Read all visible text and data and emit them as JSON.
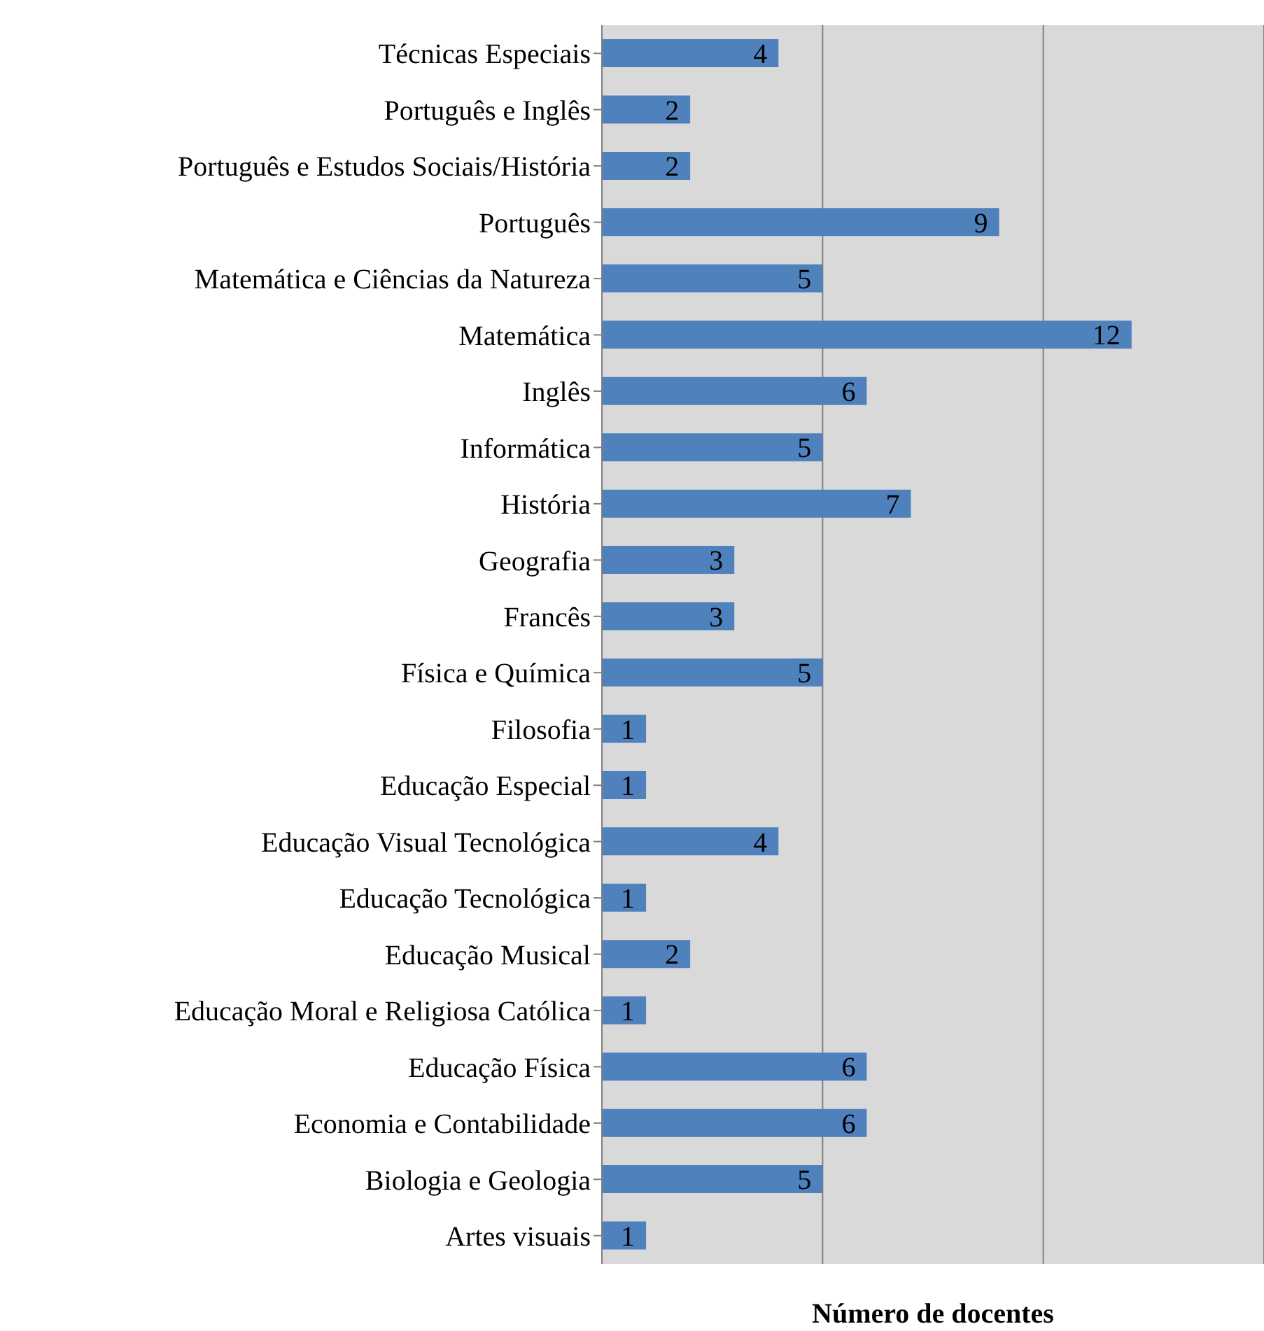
{
  "chart_data": {
    "type": "bar",
    "orientation": "horizontal",
    "xlabel": "Número de docentes",
    "categories": [
      "Técnicas Especiais",
      "Português e Inglês",
      "Português e Estudos Sociais/História",
      "Português",
      "Matemática e Ciências da Natureza",
      "Matemática",
      "Inglês",
      "Informática",
      "História",
      "Geografia",
      "Francês",
      "Física e Química",
      "Filosofia",
      "Educação Especial",
      "Educação Visual Tecnológica",
      "Educação Tecnológica",
      "Educação Musical",
      "Educação Moral e Religiosa Católica",
      "Educação Física",
      "Economia e Contabilidade",
      "Biologia e Geologia",
      "Artes visuais"
    ],
    "values": [
      4,
      2,
      2,
      9,
      5,
      12,
      6,
      5,
      7,
      3,
      3,
      5,
      1,
      1,
      4,
      1,
      2,
      1,
      6,
      6,
      5,
      1
    ],
    "color": "#4f81bd",
    "xlim": [
      0,
      15
    ],
    "xticks": [
      {
        "value": 5,
        "label": null
      },
      {
        "value": 10,
        "label": null
      }
    ],
    "tick_labels": "y",
    "grid": "x",
    "data_labels": true
  }
}
